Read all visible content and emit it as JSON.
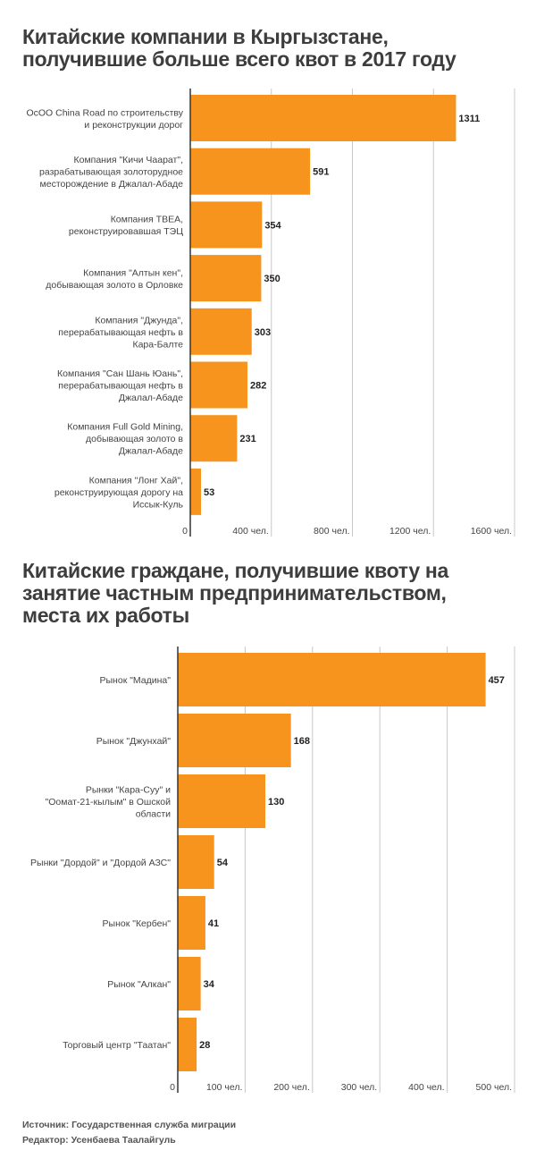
{
  "chart_data": [
    {
      "type": "bar",
      "orientation": "horizontal",
      "title_lines": [
        "Китайские компании в Кыргызстане,",
        "получившие больше всего квот в 2017 году"
      ],
      "categories": [
        [
          "ОсОО China Road по строительству",
          "и реконструкции дорог"
        ],
        [
          "Компания \"Кичи Чаарат\",",
          "разрабатывающая золоторудное",
          "месторождение в Джалал-Абаде"
        ],
        [
          "Компания ТВЕА,",
          "реконструировавшая ТЭЦ"
        ],
        [
          "Компания \"Алтын кен\",",
          "добывающая золото в Орловке"
        ],
        [
          "Компания \"Джунда\",",
          "перерабатывающая нефть в",
          "Кара-Балте"
        ],
        [
          "Компания \"Сан Шань Юань\",",
          "перерабатывающая нефть в",
          "Джалал-Абаде"
        ],
        [
          "Компания Full Gold Mining,",
          "добывающая золото в",
          "Джалал-Абаде"
        ],
        [
          "Компания \"Лонг Хай\",",
          "реконструирующая дорогу на",
          "Иссык-Куль"
        ]
      ],
      "values": [
        1311,
        591,
        354,
        350,
        303,
        282,
        231,
        53
      ],
      "value_labels": [
        "1311",
        "591",
        "354",
        "350",
        "303",
        "282",
        "231",
        "53"
      ],
      "xlim": [
        0,
        1600
      ],
      "ticks": [
        0,
        400,
        800,
        1200,
        1600
      ],
      "tick_labels": [
        "0",
        "400 чел.",
        "800 чел.",
        "1200 чел.",
        "1600 чел."
      ],
      "grid": true,
      "bar_color": "#f7941d"
    },
    {
      "type": "bar",
      "orientation": "horizontal",
      "title_lines": [
        "Китайские граждане, получившие квоту на",
        "занятие частным предпринимательством,",
        "места их работы"
      ],
      "categories": [
        [
          "Рынок \"Мадина\""
        ],
        [
          "Рынок \"Джунхай\""
        ],
        [
          "Рынки \"Кара-Суу\" и",
          "\"Оомат-21-кылым\" в Ошской",
          "области"
        ],
        [
          "Рынки \"Дордой\" и \"Дордой АЗС\""
        ],
        [
          "Рынок \"Кербен\""
        ],
        [
          "Рынок \"Алкан\""
        ],
        [
          "Торговый центр \"Таатан\""
        ]
      ],
      "values": [
        457,
        168,
        130,
        54,
        41,
        34,
        28
      ],
      "value_labels": [
        "457",
        "168",
        "130",
        "54",
        "41",
        "34",
        "28"
      ],
      "xlim": [
        0,
        500
      ],
      "ticks": [
        0,
        100,
        200,
        300,
        400,
        500
      ],
      "tick_labels": [
        "0",
        "100 чел.",
        "200 чел.",
        "300 чел.",
        "400 чел.",
        "500 чел."
      ],
      "grid": true,
      "bar_color": "#f7941d"
    }
  ],
  "footer": {
    "source": "Источник: Государственная служба миграции",
    "editor": "Редактор: Усенбаева Таалайгуль"
  },
  "colors": {
    "bar": "#f7941d",
    "grid": "#c8c8c8",
    "axis": "#333333",
    "title": "#3d3d3d"
  }
}
